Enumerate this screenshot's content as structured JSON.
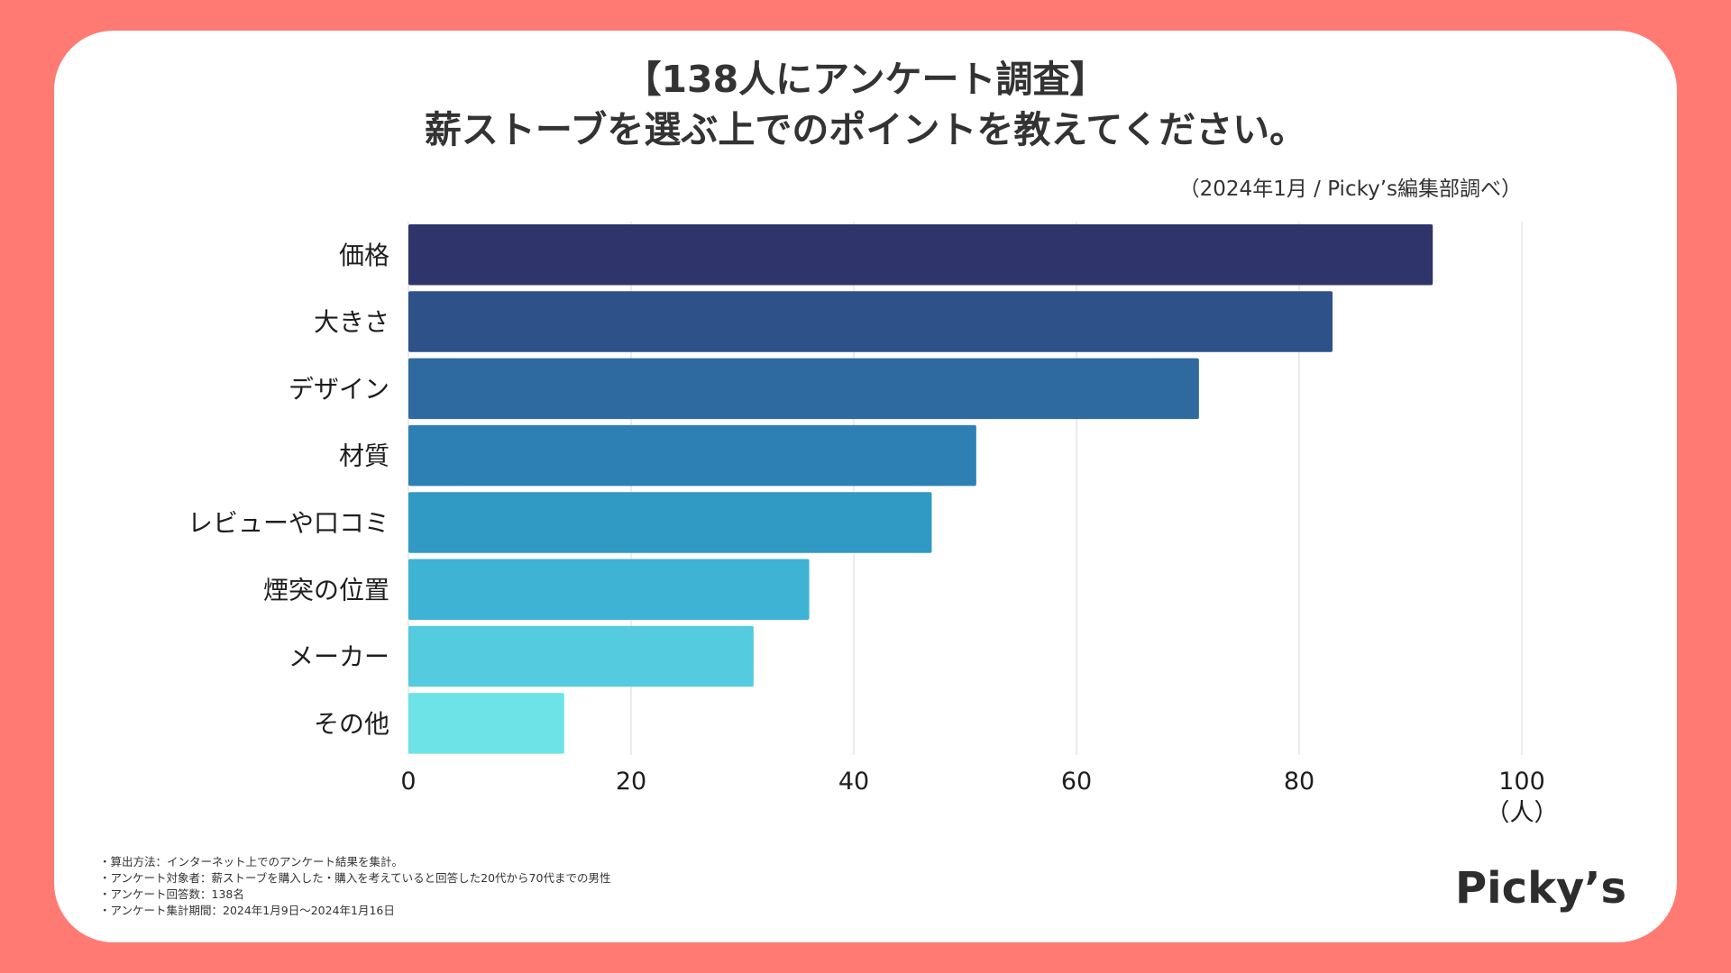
{
  "title_line1": "【138人にアンケート調査】",
  "title_line2": "薪ストーブを選ぶ上でのポイントを教えてください。",
  "source": "（2024年1月 / Picky’s編集部調べ）",
  "chart_data": {
    "type": "bar",
    "orientation": "horizontal",
    "categories": [
      "価格",
      "大きさ",
      "デザイン",
      "材質",
      "レビューや口コミ",
      "煙突の位置",
      "メーカー",
      "その他"
    ],
    "values": [
      92,
      83,
      71,
      51,
      47,
      36,
      31,
      14
    ],
    "colors": [
      "#2f356b",
      "#2e5189",
      "#2e6aa0",
      "#2d80b3",
      "#3099c4",
      "#3fb3d3",
      "#54cbde",
      "#6de3e8"
    ],
    "xlim": [
      0,
      100
    ],
    "xticks": [
      "0",
      "20",
      "40",
      "60",
      "80",
      "100"
    ],
    "xunit": "（人）",
    "grid": true
  },
  "notes": [
    "・算出方法：インターネット上でのアンケート結果を集計。",
    "・アンケート対象者：薪ストーブを購入した・購入を考えていると回答した20代から70代までの男性",
    "・アンケート回答数：138名",
    "・アンケート集計期間：2024年1月9日〜2024年1月16日"
  ],
  "logo": "Picky’s"
}
